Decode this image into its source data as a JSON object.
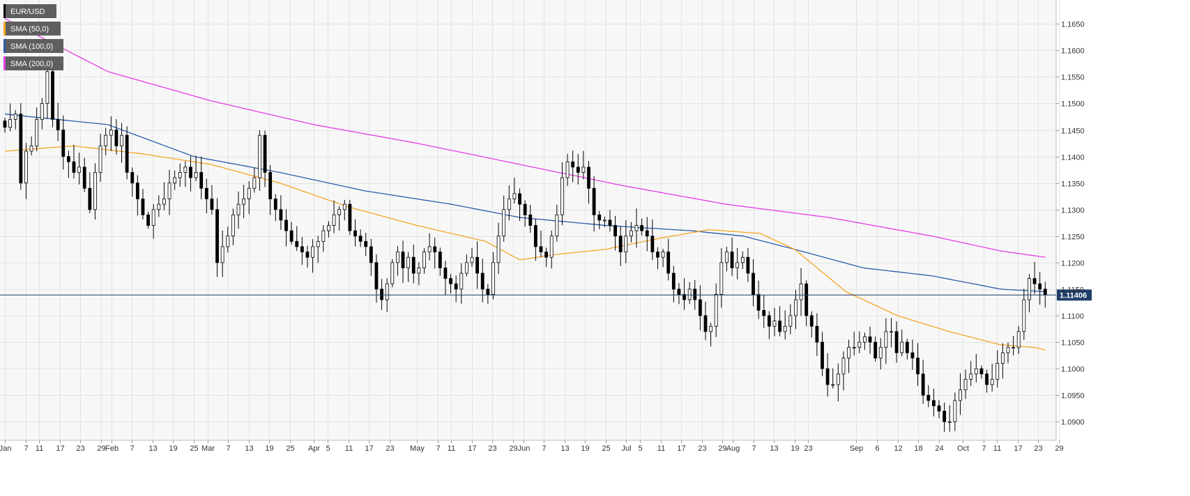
{
  "chart_data": {
    "type": "candlestick",
    "symbol": "EUR/USD",
    "current_price": 1.114,
    "current_price_label": "1.11406",
    "ylim": [
      1.0865,
      1.1695
    ],
    "y_ticks": [
      "1.1650",
      "1.1600",
      "1.1550",
      "1.1500",
      "1.1450",
      "1.1400",
      "1.1350",
      "1.1300",
      "1.1250",
      "1.1200",
      "1.1150",
      "1.1100",
      "1.1050",
      "1.1000",
      "1.0950",
      "1.0900"
    ],
    "x_ticks": [
      "Jan",
      "7",
      "11",
      "17",
      "23",
      "29",
      "Feb",
      "7",
      "13",
      "19",
      "25",
      "Mar",
      "7",
      "13",
      "19",
      "25",
      "Apr",
      "5",
      "11",
      "17",
      "23",
      "May",
      "7",
      "11",
      "17",
      "23",
      "29",
      "Jun",
      "7",
      "13",
      "19",
      "25",
      "Jul",
      "5",
      "11",
      "17",
      "23",
      "29",
      "Aug",
      "7",
      "13",
      "19",
      "23",
      "Sep",
      "6",
      "12",
      "18",
      "24",
      "Oct",
      "7",
      "11",
      "17",
      "23",
      "29"
    ],
    "x_tick_days": [
      0,
      6,
      10,
      16,
      22,
      28,
      31,
      37,
      43,
      49,
      55,
      59,
      65,
      71,
      77,
      83,
      90,
      94,
      100,
      106,
      112,
      120,
      126,
      130,
      136,
      142,
      148,
      151,
      157,
      163,
      169,
      175,
      181,
      185,
      191,
      197,
      203,
      209,
      212,
      218,
      224,
      230,
      234,
      248,
      254,
      260,
      266,
      272,
      279,
      285,
      289,
      295,
      301,
      307
    ],
    "legend": [
      {
        "label": "EUR/USD",
        "color": "#000000"
      },
      {
        "label": "SMA (50,0)",
        "color": "#f5a623"
      },
      {
        "label": "SMA (100,0)",
        "color": "#2a5caa"
      },
      {
        "label": "SMA (200,0)",
        "color": "#e63ce6"
      }
    ],
    "candle_closes": [
      1.1455,
      1.147,
      1.148,
      1.135,
      1.141,
      1.142,
      1.147,
      1.15,
      1.156,
      1.147,
      1.145,
      1.14,
      1.139,
      1.137,
      1.138,
      1.134,
      1.13,
      1.137,
      1.142,
      1.144,
      1.145,
      1.142,
      1.144,
      1.137,
      1.135,
      1.132,
      1.129,
      1.127,
      1.13,
      1.131,
      1.132,
      1.135,
      1.136,
      1.137,
      1.138,
      1.136,
      1.137,
      1.134,
      1.132,
      1.13,
      1.12,
      1.123,
      1.125,
      1.129,
      1.131,
      1.132,
      1.134,
      1.136,
      1.144,
      1.137,
      1.132,
      1.13,
      1.128,
      1.126,
      1.124,
      1.123,
      1.122,
      1.121,
      1.123,
      1.124,
      1.126,
      1.127,
      1.129,
      1.13,
      1.131,
      1.126,
      1.125,
      1.124,
      1.123,
      1.12,
      1.115,
      1.113,
      1.116,
      1.12,
      1.122,
      1.119,
      1.121,
      1.118,
      1.119,
      1.122,
      1.123,
      1.122,
      1.119,
      1.117,
      1.116,
      1.115,
      1.118,
      1.12,
      1.121,
      1.118,
      1.115,
      1.114,
      1.12,
      1.125,
      1.13,
      1.132,
      1.133,
      1.131,
      1.129,
      1.127,
      1.123,
      1.122,
      1.121,
      1.125,
      1.129,
      1.136,
      1.139,
      1.138,
      1.137,
      1.138,
      1.134,
      1.129,
      1.128,
      1.128,
      1.127,
      1.125,
      1.122,
      1.125,
      1.126,
      1.127,
      1.126,
      1.125,
      1.122,
      1.121,
      1.122,
      1.118,
      1.115,
      1.114,
      1.113,
      1.115,
      1.113,
      1.11,
      1.107,
      1.108,
      1.114,
      1.12,
      1.122,
      1.119,
      1.12,
      1.121,
      1.118,
      1.114,
      1.111,
      1.11,
      1.108,
      1.109,
      1.107,
      1.108,
      1.11,
      1.113,
      1.116,
      1.11,
      1.108,
      1.105,
      1.1,
      1.097,
      1.097,
      1.099,
      1.102,
      1.104,
      1.104,
      1.105,
      1.106,
      1.105,
      1.102,
      1.104,
      1.107,
      1.107,
      1.103,
      1.105,
      1.103,
      1.102,
      1.099,
      1.095,
      1.094,
      1.093,
      1.092,
      1.09,
      1.09,
      1.094,
      1.096,
      1.098,
      1.099,
      1.1,
      1.099,
      1.097,
      1.098,
      1.101,
      1.103,
      1.104,
      1.104,
      1.107,
      1.113,
      1.117,
      1.116,
      1.115,
      1.114
    ],
    "sma_50_anchors": [
      [
        0,
        1.141
      ],
      [
        20,
        1.142
      ],
      [
        40,
        1.1405
      ],
      [
        60,
        1.1385
      ],
      [
        80,
        1.135
      ],
      [
        100,
        1.1305
      ],
      [
        120,
        1.127
      ],
      [
        140,
        1.124
      ],
      [
        150,
        1.1205
      ],
      [
        160,
        1.1215
      ],
      [
        175,
        1.1225
      ],
      [
        190,
        1.1245
      ],
      [
        205,
        1.1262
      ],
      [
        220,
        1.1255
      ],
      [
        230,
        1.1225
      ],
      [
        245,
        1.1145
      ],
      [
        260,
        1.11
      ],
      [
        275,
        1.107
      ],
      [
        290,
        1.1045
      ],
      [
        300,
        1.104
      ],
      [
        303,
        1.1035
      ]
    ],
    "sma_100_anchors": [
      [
        0,
        1.148
      ],
      [
        30,
        1.146
      ],
      [
        55,
        1.14
      ],
      [
        80,
        1.137
      ],
      [
        105,
        1.1335
      ],
      [
        130,
        1.131
      ],
      [
        150,
        1.1285
      ],
      [
        175,
        1.127
      ],
      [
        200,
        1.126
      ],
      [
        215,
        1.125
      ],
      [
        230,
        1.1225
      ],
      [
        250,
        1.119
      ],
      [
        270,
        1.1175
      ],
      [
        290,
        1.115
      ],
      [
        303,
        1.1145
      ]
    ],
    "sma_200_anchors": [
      [
        0,
        1.166
      ],
      [
        30,
        1.156
      ],
      [
        60,
        1.1505
      ],
      [
        90,
        1.146
      ],
      [
        120,
        1.1425
      ],
      [
        150,
        1.1385
      ],
      [
        180,
        1.1345
      ],
      [
        210,
        1.131
      ],
      [
        240,
        1.1285
      ],
      [
        270,
        1.125
      ],
      [
        290,
        1.1222
      ],
      [
        303,
        1.121
      ]
    ]
  }
}
